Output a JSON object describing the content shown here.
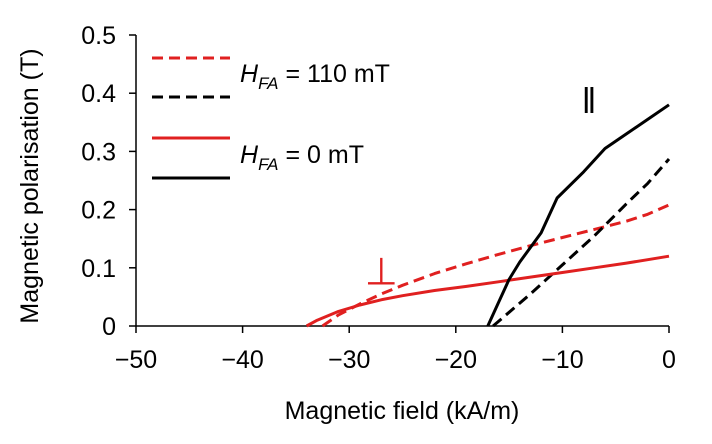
{
  "chart_data": {
    "type": "line",
    "title": "",
    "xlabel": "Magnetic field (kA/m)",
    "ylabel": "Magnetic polarisation (T)",
    "xlim": [
      -50,
      0
    ],
    "ylim": [
      0,
      0.5
    ],
    "x_ticks": [
      -50,
      -40,
      -30,
      -20,
      -10,
      0
    ],
    "x_tick_labels": [
      "−50",
      "−40",
      "−30",
      "−20",
      "−10",
      "0"
    ],
    "y_ticks": [
      0,
      0.1,
      0.2,
      0.3,
      0.4,
      0.5
    ],
    "y_tick_labels": [
      "0",
      "0.1",
      "0.2",
      "0.3",
      "0.4",
      "0.5"
    ],
    "grid": false,
    "legend": {
      "placement": "top-left",
      "groups": [
        {
          "label_symbol": "H",
          "label_subscript": "FA",
          "label_rest": " = 110 mT",
          "style": "dashed"
        },
        {
          "label_symbol": "H",
          "label_subscript": "FA",
          "label_rest": " = 0 mT",
          "style": "solid"
        }
      ]
    },
    "annotations": [
      {
        "text": "‖",
        "x": -7.5,
        "y": 0.39,
        "color": "#000000",
        "meaning": "parallel"
      },
      {
        "text": "⊥",
        "x": -27,
        "y": 0.095,
        "color": "#e02020",
        "meaning": "perpendicular"
      }
    ],
    "series": [
      {
        "name": "perpendicular, H_FA = 110 mT",
        "color": "#e02020",
        "dash": true,
        "x": [
          -32.5,
          -31,
          -29,
          -27,
          -25,
          -22,
          -19,
          -16,
          -13,
          -10,
          -7,
          -4,
          -2,
          0
        ],
        "y": [
          0,
          0.019,
          0.038,
          0.055,
          0.07,
          0.09,
          0.107,
          0.123,
          0.138,
          0.152,
          0.166,
          0.18,
          0.192,
          0.208
        ]
      },
      {
        "name": "parallel, H_FA = 110 mT",
        "color": "#000000",
        "dash": true,
        "x": [
          -16.5,
          -13,
          -10,
          -7,
          -4,
          -2,
          0
        ],
        "y": [
          0,
          0.055,
          0.105,
          0.155,
          0.21,
          0.245,
          0.287
        ]
      },
      {
        "name": "perpendicular, H_FA = 0 mT",
        "color": "#e02020",
        "dash": false,
        "x": [
          -34,
          -33,
          -31,
          -29,
          -27,
          -25,
          -22,
          -19,
          -16,
          -13,
          -10,
          -7,
          -4,
          -2,
          0
        ],
        "y": [
          0,
          0.01,
          0.025,
          0.036,
          0.045,
          0.052,
          0.061,
          0.068,
          0.076,
          0.084,
          0.092,
          0.1,
          0.108,
          0.114,
          0.12
        ]
      },
      {
        "name": "parallel, H_FA = 0 mT",
        "color": "#000000",
        "dash": false,
        "x": [
          -17,
          -16,
          -15,
          -14,
          -12,
          -10.5,
          -8,
          -6,
          -4,
          -2,
          0
        ],
        "y": [
          0,
          0.04,
          0.08,
          0.11,
          0.16,
          0.22,
          0.265,
          0.305,
          0.33,
          0.355,
          0.38
        ]
      }
    ]
  }
}
